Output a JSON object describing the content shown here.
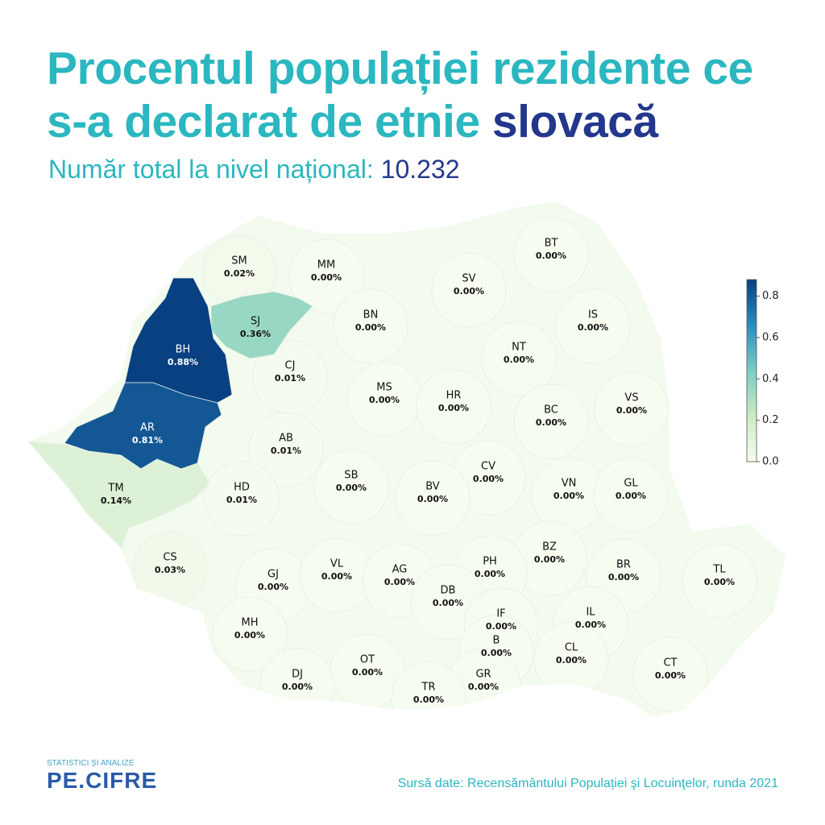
{
  "header": {
    "title": [
      "Procentul populației rezidente ce",
      "s-a declarat de etnie"
    ],
    "title_highlight": "slovacă",
    "subtitle": "Număr total la nivel național:",
    "national_total": "10.232"
  },
  "chart_data": {
    "type": "choropleth",
    "clim": [
      0,
      0.88
    ],
    "colorbar_ticks": [
      {
        "value": 0,
        "label": "0.0"
      },
      0.2,
      0.4,
      0.6,
      0.8
    ],
    "counties": [
      {
        "code": "SM",
        "value": 0.02,
        "value_label": "0.02%"
      },
      {
        "code": "MM",
        "value": 0,
        "value_label": "0.00%"
      },
      {
        "code": "BT",
        "value": 0,
        "value_label": "0.00%"
      },
      {
        "code": "SV",
        "value": 0,
        "value_label": "0.00%"
      },
      {
        "code": "SJ",
        "value": 0.36,
        "value_label": "0.36%"
      },
      {
        "code": "BN",
        "value": 0,
        "value_label": "0.00%"
      },
      {
        "code": "IS",
        "value": 0,
        "value_label": "0.00%"
      },
      {
        "code": "BH",
        "value": 0.88,
        "value_label": "0.88%"
      },
      {
        "code": "CJ",
        "value": 0.01,
        "value_label": "0.01%"
      },
      {
        "code": "NT",
        "value": 0,
        "value_label": "0.00%"
      },
      {
        "code": "MS",
        "value": 0,
        "value_label": "0.00%"
      },
      {
        "code": "HR",
        "value": 0,
        "value_label": "0.00%"
      },
      {
        "code": "BC",
        "value": 0,
        "value_label": "0.00%"
      },
      {
        "code": "VS",
        "value": 0,
        "value_label": "0.00%"
      },
      {
        "code": "AR",
        "value": 0.81,
        "value_label": "0.81%"
      },
      {
        "code": "AB",
        "value": 0.01,
        "value_label": "0.01%"
      },
      {
        "code": "CV",
        "value": 0,
        "value_label": "0.00%"
      },
      {
        "code": "TM",
        "value": 0.14,
        "value_label": "0.14%"
      },
      {
        "code": "HD",
        "value": 0.01,
        "value_label": "0.01%"
      },
      {
        "code": "SB",
        "value": 0,
        "value_label": "0.00%"
      },
      {
        "code": "BV",
        "value": 0,
        "value_label": "0.00%"
      },
      {
        "code": "VN",
        "value": 0,
        "value_label": "0.00%"
      },
      {
        "code": "GL",
        "value": 0,
        "value_label": "0.00%"
      },
      {
        "code": "CS",
        "value": 0.03,
        "value_label": "0.03%"
      },
      {
        "code": "BZ",
        "value": 0,
        "value_label": "0.00%"
      },
      {
        "code": "PH",
        "value": 0,
        "value_label": "0.00%"
      },
      {
        "code": "BR",
        "value": 0,
        "value_label": "0.00%"
      },
      {
        "code": "TL",
        "value": 0,
        "value_label": "0.00%"
      },
      {
        "code": "GJ",
        "value": 0,
        "value_label": "0.00%"
      },
      {
        "code": "VL",
        "value": 0,
        "value_label": "0.00%"
      },
      {
        "code": "AG",
        "value": 0,
        "value_label": "0.00%"
      },
      {
        "code": "DB",
        "value": 0,
        "value_label": "0.00%"
      },
      {
        "code": "IF",
        "value": 0,
        "value_label": "0.00%"
      },
      {
        "code": "IL",
        "value": 0,
        "value_label": "0.00%"
      },
      {
        "code": "MH",
        "value": 0,
        "value_label": "0.00%"
      },
      {
        "code": "B",
        "value": 0,
        "value_label": "0.00%"
      },
      {
        "code": "CL",
        "value": 0,
        "value_label": "0.00%"
      },
      {
        "code": "CT",
        "value": 0,
        "value_label": "0.00%"
      },
      {
        "code": "OT",
        "value": 0,
        "value_label": "0.00%"
      },
      {
        "code": "DJ",
        "value": 0,
        "value_label": "0.00%"
      },
      {
        "code": "GR",
        "value": 0,
        "value_label": "0.00%"
      },
      {
        "code": "TR",
        "value": 0,
        "value_label": "0.00%"
      }
    ]
  },
  "footer": {
    "logo_tagline": "STATISTICI ȘI ANALIZE",
    "logo": "PE.CIFRE",
    "source": "Sursă date: Recensământului Populației şi Locuinţelor, runda 2021"
  }
}
